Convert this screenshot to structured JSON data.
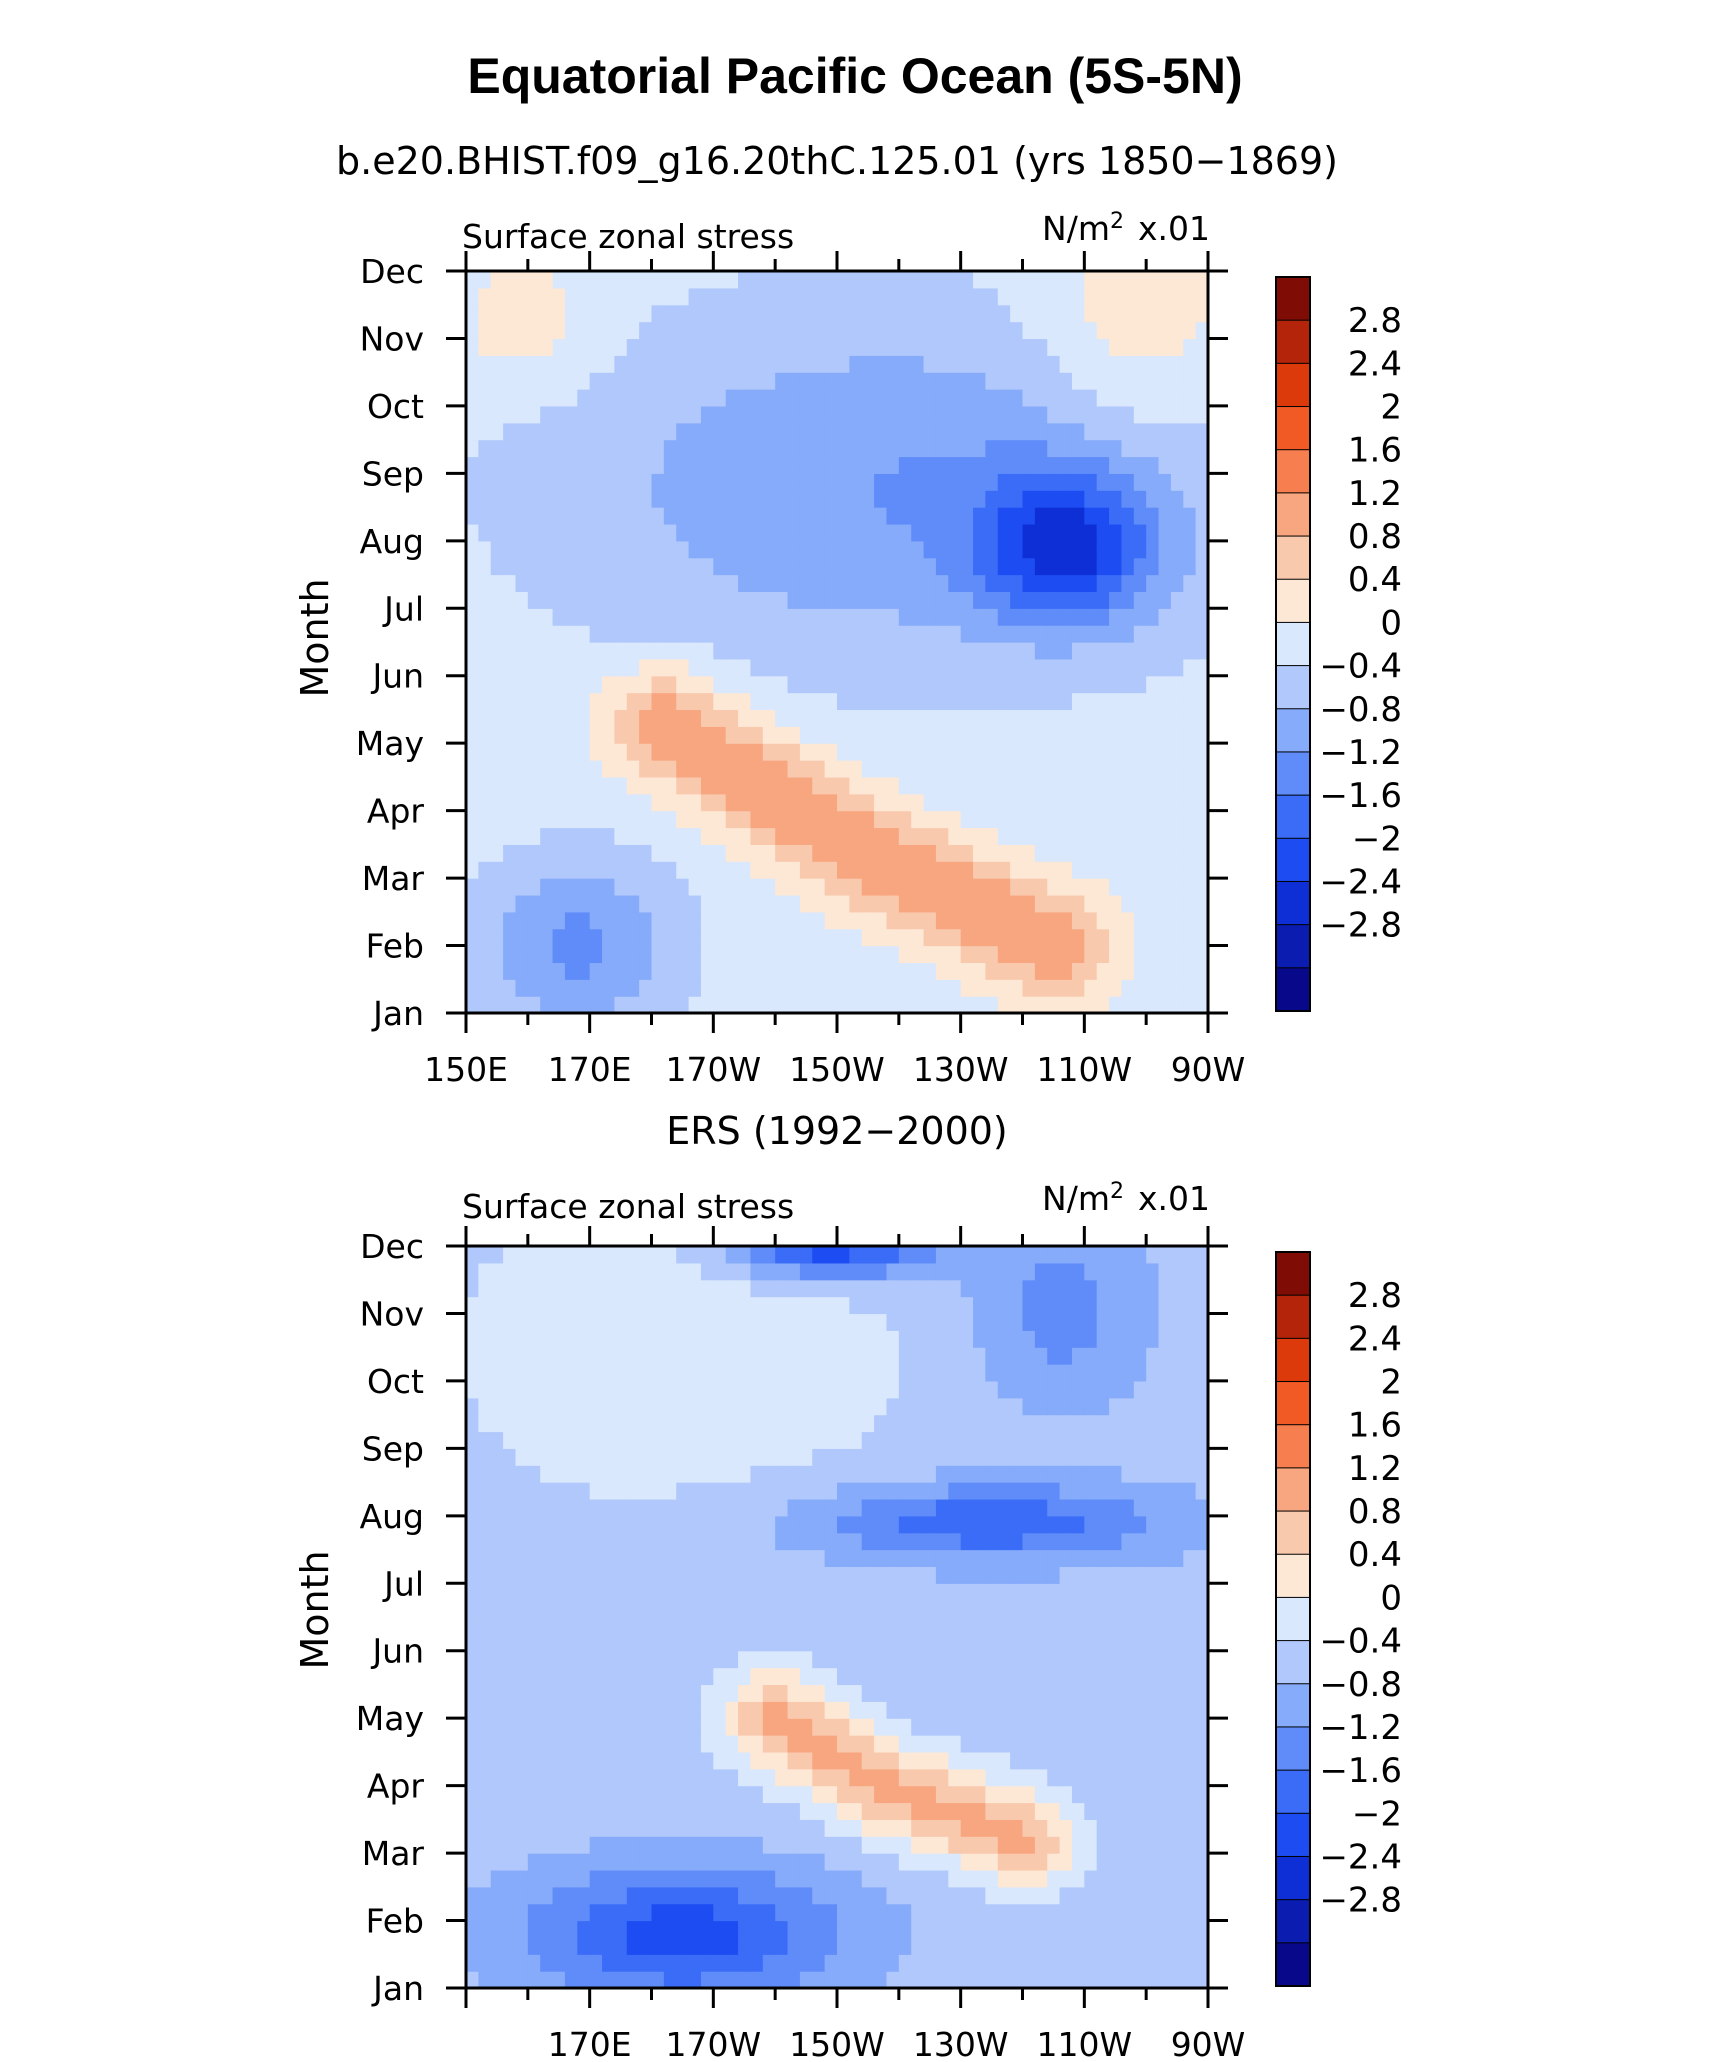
{
  "title": "Equatorial Pacific Ocean (5S-5N)",
  "colors": {
    "scale": [
      "#08088a",
      "#0a1db0",
      "#0e2fd6",
      "#1c4cf2",
      "#3a6cf8",
      "#5f8cf9",
      "#86abfa",
      "#b0c8fb",
      "#d9e8fc",
      "#fde8d6",
      "#f9c9ae",
      "#f7a680",
      "#f67e4f",
      "#f25a25",
      "#dd3a0b",
      "#b3240a",
      "#7f0d06"
    ]
  },
  "colorbar_labels": [
    "2.8",
    "2.4",
    "2",
    "1.6",
    "1.2",
    "0.8",
    "0.4",
    "0",
    "−0.4",
    "−0.8",
    "−1.2",
    "−1.6",
    "−2",
    "−2.4",
    "−2.8"
  ],
  "chart_data": [
    {
      "type": "heatmap",
      "title": "b.e20.BHIST.f09_g16.20thC.125.01 (yrs 1850−1869)",
      "left_label": "Surface zonal stress",
      "right_label": "N/m",
      "right_label_sup": "2",
      "right_label_scale": "x.01",
      "ylabel": "Month",
      "y_ticks": [
        "Jan",
        "Feb",
        "Mar",
        "Apr",
        "May",
        "Jun",
        "Jul",
        "Aug",
        "Sep",
        "Oct",
        "Nov",
        "Dec"
      ],
      "x_ticks": [
        "150E",
        "170E",
        "170W",
        "150W",
        "130W",
        "110W",
        "90W"
      ],
      "x_range_deg_east": [
        150,
        270
      ],
      "levels": [
        -2.8,
        -2.4,
        -2.0,
        -1.6,
        -1.2,
        -0.8,
        -0.4,
        0,
        0.4,
        0.8,
        1.2,
        1.6,
        2.0,
        2.4,
        2.8
      ],
      "features": [
        {
          "name": "base",
          "value": 0.2,
          "lon_range": [
            150,
            270
          ],
          "month_range": [
            0,
            11
          ]
        },
        {
          "name": "east_positive_autumn",
          "value": 0.6,
          "lon_center": 258,
          "month_center": 10.2,
          "lon_halfwidth": 16,
          "month_halfwidth": 1.8
        },
        {
          "name": "west_positive_autumn",
          "value": 0.5,
          "lon_center": 160,
          "month_center": 10.2,
          "lon_halfwidth": 12,
          "month_halfwidth": 1
        },
        {
          "name": "central_negative_summer",
          "value": -1.0,
          "lon_center": 220,
          "month_center": 7.8,
          "lon_halfwidth": 55,
          "month_halfwidth": 2.6
        },
        {
          "name": "east_negative_july",
          "value": -1.9,
          "lon_center": 247,
          "month_center": 6.9,
          "lon_halfwidth": 14,
          "month_halfwidth": 1.1
        },
        {
          "name": "west_negative_feb",
          "value": -1.1,
          "lon_center": 168,
          "month_center": 1.0,
          "lon_halfwidth": 16,
          "month_halfwidth": 1.3
        },
        {
          "name": "positive_band_spring",
          "value": 1.4,
          "lon_path": [
            [
              182,
              4.3
            ],
            [
              214,
              2.4
            ],
            [
              245,
              1.0
            ]
          ],
          "half_width_months": 0.8
        }
      ]
    },
    {
      "type": "heatmap",
      "title": "ERS (1992−2000)",
      "left_label": "Surface zonal stress",
      "right_label": "N/m",
      "right_label_sup": "2",
      "right_label_scale": "x.01",
      "ylabel": "Month",
      "y_ticks": [
        "Jan",
        "Feb",
        "Mar",
        "Apr",
        "May",
        "Jun",
        "Jul",
        "Aug",
        "Sep",
        "Oct",
        "Nov",
        "Dec"
      ],
      "x_ticks": [
        "170E",
        "170W",
        "150W",
        "130W",
        "110W",
        "90W"
      ],
      "x_range_deg_east": [
        150,
        270
      ],
      "levels": [
        -2.8,
        -2.4,
        -2.0,
        -1.6,
        -1.2,
        -0.8,
        -0.4,
        0,
        0.4,
        0.8,
        1.2,
        1.6,
        2.0,
        2.4,
        2.8
      ],
      "features": [
        {
          "name": "base",
          "value": -0.2,
          "lon_range": [
            150,
            270
          ],
          "month_range": [
            0,
            11
          ]
        },
        {
          "name": "west_positive",
          "value": 0.5,
          "lon_center": 185,
          "month_center": 9.5,
          "lon_halfwidth": 38,
          "month_halfwidth": 2.5
        },
        {
          "name": "top_negative_dec",
          "value": -1.8,
          "lon_center": 209,
          "month_center": 11,
          "lon_halfwidth": 17,
          "month_halfwidth": 0.5
        },
        {
          "name": "east_negative_oct",
          "value": -0.8,
          "lon_center": 246,
          "month_center": 10,
          "lon_halfwidth": 14,
          "month_halfwidth": 1.4
        },
        {
          "name": "negative_band_july",
          "value": -1.3,
          "lon_center": 234,
          "month_center": 6.9,
          "lon_halfwidth": 30,
          "month_halfwidth": 0.6
        },
        {
          "name": "west_negative_feb",
          "value": -1.6,
          "lon_center": 185,
          "month_center": 0.8,
          "lon_halfwidth": 26,
          "month_halfwidth": 1
        },
        {
          "name": "positive_band_spring",
          "value": 1.5,
          "lon_path": [
            [
              200,
              4.0
            ],
            [
              217,
              3.0
            ],
            [
              240,
              2.2
            ]
          ],
          "half_width_months": 0.7
        }
      ]
    }
  ]
}
